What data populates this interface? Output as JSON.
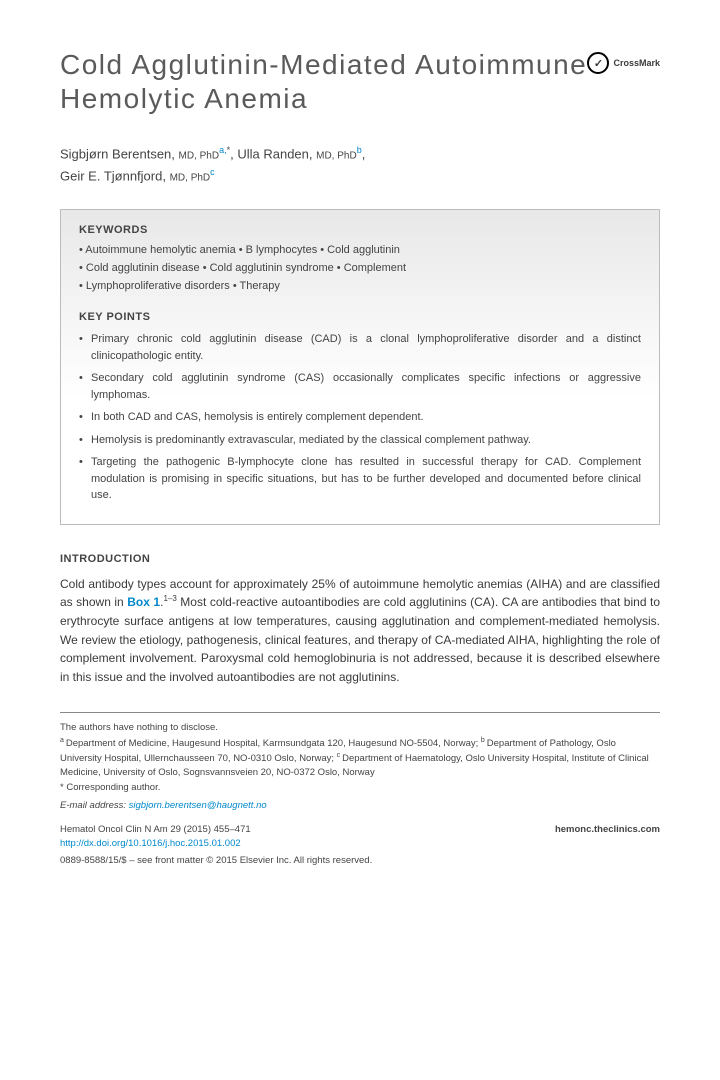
{
  "title": "Cold Agglutinin-Mediated Autoimmune Hemolytic Anemia",
  "crossmark_label": "CrossMark",
  "authors": [
    {
      "name": "Sigbjørn Berentsen",
      "credentials": "MD, PhD",
      "affil": "a,",
      "star": "*"
    },
    {
      "name": "Ulla Randen",
      "credentials": "MD, PhD",
      "affil": "b",
      "star": ""
    },
    {
      "name": "Geir E. Tjønnfjord",
      "credentials": "MD, PhD",
      "affil": "c",
      "star": ""
    }
  ],
  "keywords_heading": "KEYWORDS",
  "keywords_lines": [
    "• Autoimmune hemolytic anemia • B lymphocytes • Cold agglutinin",
    "• Cold agglutinin disease • Cold agglutinin syndrome • Complement",
    "• Lymphoproliferative disorders • Therapy"
  ],
  "keypoints_heading": "KEY POINTS",
  "keypoints": [
    "Primary chronic cold agglutinin disease (CAD) is a clonal lymphoproliferative disorder and a distinct clinicopathologic entity.",
    "Secondary cold agglutinin syndrome (CAS) occasionally complicates specific infections or aggressive lymphomas.",
    "In both CAD and CAS, hemolysis is entirely complement dependent.",
    "Hemolysis is predominantly extravascular, mediated by the classical complement pathway.",
    "Targeting the pathogenic B-lymphocyte clone has resulted in successful therapy for CAD. Complement modulation is promising in specific situations, but has to be further developed and documented before clinical use."
  ],
  "intro_heading": "INTRODUCTION",
  "intro_pre": "Cold antibody types account for approximately 25% of autoimmune hemolytic anemias (AIHA) and are classified as shown in ",
  "intro_box_label": "Box 1",
  "intro_refs": "1–3",
  "intro_post": " Most cold-reactive autoantibodies are cold agglutinins (CA). CA are antibodies that bind to erythrocyte surface antigens at low temperatures, causing agglutination and complement-mediated hemolysis. We review the etiology, pathogenesis, clinical features, and therapy of CA-mediated AIHA, highlighting the role of complement involvement. Paroxysmal cold hemoglobinuria is not addressed, because it is described elsewhere in this issue and the involved autoantibodies are not agglutinins.",
  "disclosure": "The authors have nothing to disclose.",
  "affiliations": "Department of Medicine, Haugesund Hospital, Karmsundgata 120, Haugesund NO-5504, Norway; ",
  "affiliations_b": "Department of Pathology, Oslo University Hospital, Ullernchausseen 70, NO-0310 Oslo, Norway; ",
  "affiliations_c": "Department of Haematology, Oslo University Hospital, Institute of Clinical Medicine, University of Oslo, Sognsvannsveien 20, NO-0372 Oslo, Norway",
  "corresponding": "* Corresponding author.",
  "email_label": "E-mail address:",
  "email": "sigbjorn.berentsen@haugnett.no",
  "journal_cite": "Hematol Oncol Clin N Am 29 (2015) 455–471",
  "doi": "http://dx.doi.org/10.1016/j.hoc.2015.01.002",
  "journal_site": "hemonc.theclinics.com",
  "copyright": "0889-8588/15/$ – see front matter © 2015 Elsevier Inc. All rights reserved."
}
